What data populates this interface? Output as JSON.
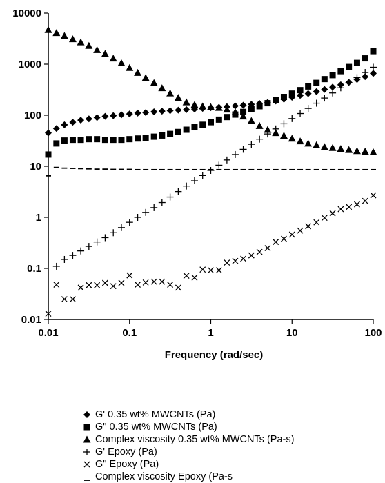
{
  "chart_data": {
    "type": "scatter",
    "x_scale": "log",
    "y_scale": "log",
    "xlim": [
      0.01,
      100
    ],
    "ylim": [
      0.01,
      10000
    ],
    "xlabel": "Frequency (rad/sec)",
    "ylabel": "",
    "x_ticks": [
      "0.01",
      "0.1",
      "1",
      "10",
      "100"
    ],
    "y_ticks": [
      "0.01",
      "0.1",
      "1",
      "10",
      "100",
      "1000",
      "10000"
    ],
    "grid": false,
    "legend_position": "bottom",
    "series": [
      {
        "name": "G' 0.35 wt% MWCNTs (Pa)",
        "marker": "diamond",
        "x": [
          0.01,
          0.0126,
          0.0158,
          0.02,
          0.0251,
          0.0316,
          0.0398,
          0.0501,
          0.0631,
          0.0794,
          0.1,
          0.126,
          0.158,
          0.2,
          0.251,
          0.316,
          0.398,
          0.501,
          0.631,
          0.794,
          1.0,
          1.26,
          1.58,
          2.0,
          2.51,
          3.16,
          3.98,
          5.01,
          6.31,
          7.94,
          10.0,
          12.6,
          15.8,
          20.0,
          25.1,
          31.6,
          39.8,
          50.1,
          63.1,
          79.4,
          100
        ],
        "y": [
          45,
          55,
          65,
          73,
          80,
          85,
          90,
          95,
          98,
          102,
          106,
          110,
          113,
          117,
          120,
          123,
          126,
          129,
          132,
          136,
          140,
          143,
          147,
          152,
          157,
          163,
          170,
          178,
          190,
          205,
          225,
          245,
          265,
          290,
          320,
          355,
          395,
          440,
          500,
          570,
          660
        ]
      },
      {
        "name": "G\" 0.35 wt% MWCNTs (Pa)",
        "marker": "square",
        "x": [
          0.01,
          0.0126,
          0.0158,
          0.02,
          0.0251,
          0.0316,
          0.0398,
          0.0501,
          0.0631,
          0.0794,
          0.1,
          0.126,
          0.158,
          0.2,
          0.251,
          0.316,
          0.398,
          0.501,
          0.631,
          0.794,
          1.0,
          1.26,
          1.58,
          2.0,
          2.51,
          3.16,
          3.98,
          5.01,
          6.31,
          7.94,
          10.0,
          12.6,
          15.8,
          20.0,
          25.1,
          31.6,
          39.8,
          50.1,
          63.1,
          79.4,
          100
        ],
        "y": [
          17,
          28,
          32,
          33,
          33,
          34,
          34,
          33,
          33,
          33,
          34,
          35,
          36,
          38,
          40,
          43,
          47,
          52,
          58,
          65,
          73,
          82,
          92,
          103,
          116,
          132,
          150,
          172,
          198,
          228,
          265,
          310,
          365,
          430,
          510,
          610,
          730,
          880,
          1060,
          1300,
          1800
        ]
      },
      {
        "name": "Complex viscosity 0.35 wt% MWCNTs (Pa-s)",
        "marker": "triangle",
        "x": [
          0.01,
          0.0126,
          0.0158,
          0.02,
          0.0251,
          0.0316,
          0.0398,
          0.0501,
          0.0631,
          0.0794,
          0.1,
          0.126,
          0.158,
          0.2,
          0.251,
          0.316,
          0.398,
          0.501,
          0.631,
          0.794,
          1.0,
          1.26,
          1.58,
          2.0,
          2.51,
          3.16,
          3.98,
          5.01,
          6.31,
          7.94,
          10.0,
          12.6,
          15.8,
          20.0,
          25.1,
          31.6,
          39.8,
          50.1,
          63.1,
          79.4,
          100
        ],
        "y": [
          4700,
          4100,
          3600,
          3100,
          2700,
          2300,
          1900,
          1600,
          1300,
          1050,
          850,
          680,
          540,
          430,
          340,
          270,
          220,
          180,
          160,
          150,
          145,
          140,
          130,
          115,
          95,
          78,
          62,
          52,
          45,
          40,
          35,
          31,
          28,
          26,
          24,
          23,
          22,
          21,
          20,
          19.5,
          19
        ]
      },
      {
        "name": "G' Epoxy (Pa)",
        "marker": "plus",
        "x": [
          0.0126,
          0.0158,
          0.02,
          0.0251,
          0.0316,
          0.0398,
          0.0501,
          0.0631,
          0.0794,
          0.1,
          0.126,
          0.158,
          0.2,
          0.251,
          0.316,
          0.398,
          0.501,
          0.631,
          0.794,
          1.0,
          1.26,
          1.58,
          2.0,
          2.51,
          3.16,
          3.98,
          5.01,
          6.31,
          7.94,
          10.0,
          12.6,
          15.8,
          20.0,
          25.1,
          31.6,
          39.8,
          50.1,
          63.1,
          79.4,
          100
        ],
        "y": [
          0.11,
          0.15,
          0.18,
          0.22,
          0.27,
          0.33,
          0.4,
          0.5,
          0.63,
          0.8,
          1.0,
          1.25,
          1.55,
          1.95,
          2.5,
          3.2,
          4.1,
          5.2,
          6.6,
          8.3,
          10.5,
          13.3,
          17,
          21.5,
          27,
          34,
          43,
          54,
          68,
          86,
          108,
          136,
          172,
          217,
          273,
          344,
          433,
          545,
          687,
          870
        ]
      },
      {
        "name": "G\" Epoxy (Pa)",
        "marker": "cross",
        "x": [
          0.01,
          0.0126,
          0.0158,
          0.02,
          0.0251,
          0.0316,
          0.0398,
          0.0501,
          0.0631,
          0.0794,
          0.1,
          0.126,
          0.158,
          0.2,
          0.251,
          0.316,
          0.398,
          0.501,
          0.631,
          0.794,
          1.0,
          1.26,
          1.58,
          2.0,
          2.51,
          3.16,
          3.98,
          5.01,
          6.31,
          7.94,
          10.0,
          12.6,
          15.8,
          20.0,
          25.1,
          31.6,
          39.8,
          50.1,
          63.1,
          79.4,
          100
        ],
        "y": [
          0.013,
          0.048,
          0.025,
          0.025,
          0.042,
          0.047,
          0.047,
          0.052,
          0.045,
          0.052,
          0.073,
          0.048,
          0.053,
          0.055,
          0.055,
          0.048,
          0.042,
          0.072,
          0.066,
          0.095,
          0.092,
          0.092,
          0.13,
          0.14,
          0.155,
          0.18,
          0.21,
          0.25,
          0.33,
          0.38,
          0.46,
          0.55,
          0.67,
          0.8,
          0.98,
          1.2,
          1.45,
          1.6,
          1.8,
          2.1,
          2.7
        ]
      },
      {
        "name": "Complex viscosity Epoxy (Pa-s",
        "marker": "dash",
        "x": [
          0.01,
          0.0126,
          0.0158,
          0.02,
          0.0251,
          0.0316,
          0.0398,
          0.0501,
          0.0631,
          0.0794,
          0.1,
          0.126,
          0.158,
          0.2,
          0.251,
          0.316,
          0.398,
          0.501,
          0.631,
          0.794,
          1.0,
          1.26,
          1.58,
          2.0,
          2.51,
          3.16,
          3.98,
          5.01,
          6.31,
          7.94,
          10.0,
          12.6,
          15.8,
          20.0,
          25.1,
          31.6,
          39.8,
          50.1,
          63.1,
          79.4,
          100
        ],
        "y": [
          6.5,
          9.5,
          9.2,
          9.1,
          9.0,
          8.9,
          8.8,
          8.8,
          8.7,
          8.7,
          8.7,
          8.6,
          8.6,
          8.6,
          8.6,
          8.6,
          8.6,
          8.6,
          8.6,
          8.6,
          8.6,
          8.6,
          8.6,
          8.6,
          8.6,
          8.6,
          8.6,
          8.6,
          8.6,
          8.6,
          8.6,
          8.6,
          8.6,
          8.6,
          8.6,
          8.6,
          8.6,
          8.6,
          8.6,
          8.6,
          8.6
        ]
      }
    ]
  }
}
